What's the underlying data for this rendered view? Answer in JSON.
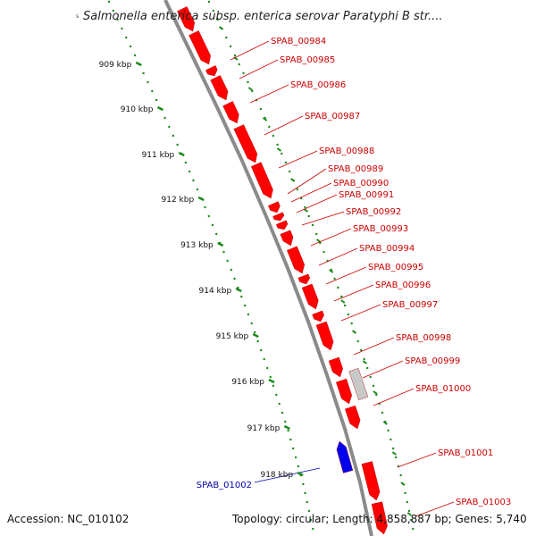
{
  "header": {
    "title": "Salmonella enterica subsp. enterica serovar Paratyphi B str....",
    "marker": "s"
  },
  "footer": {
    "accession": "Accession: NC_010102",
    "summary": "Topology: circular; Length: 4,858,887 bp; Genes: 5,740"
  },
  "colors": {
    "forward_gene": "#ff0000",
    "reverse_gene": "#0000ee",
    "other_feature": "#c8c8c8",
    "backbone": "#8a8a8a",
    "tick": "#1a8a1a",
    "forward_label": "#cc0000",
    "reverse_label": "#0000aa"
  },
  "scale_labels": [
    "909 kbp",
    "910 kbp",
    "911 kbp",
    "912 kbp",
    "913 kbp",
    "914 kbp",
    "915 kbp",
    "916 kbp",
    "917 kbp",
    "918 kbp"
  ],
  "gene_labels": [
    {
      "name": "SPAB_00984",
      "strand": "forward"
    },
    {
      "name": "SPAB_00985",
      "strand": "forward"
    },
    {
      "name": "SPAB_00986",
      "strand": "forward"
    },
    {
      "name": "SPAB_00987",
      "strand": "forward"
    },
    {
      "name": "SPAB_00988",
      "strand": "forward"
    },
    {
      "name": "SPAB_00989",
      "strand": "forward"
    },
    {
      "name": "SPAB_00990",
      "strand": "forward"
    },
    {
      "name": "SPAB_00991",
      "strand": "forward"
    },
    {
      "name": "SPAB_00992",
      "strand": "forward"
    },
    {
      "name": "SPAB_00993",
      "strand": "forward"
    },
    {
      "name": "SPAB_00994",
      "strand": "forward"
    },
    {
      "name": "SPAB_00995",
      "strand": "forward"
    },
    {
      "name": "SPAB_00996",
      "strand": "forward"
    },
    {
      "name": "SPAB_00997",
      "strand": "forward"
    },
    {
      "name": "SPAB_00998",
      "strand": "forward"
    },
    {
      "name": "SPAB_00999",
      "strand": "forward"
    },
    {
      "name": "SPAB_01000",
      "strand": "forward"
    },
    {
      "name": "SPAB_01001",
      "strand": "forward"
    },
    {
      "name": "SPAB_01003",
      "strand": "forward"
    },
    {
      "name": "SPAB_01002",
      "strand": "reverse"
    }
  ]
}
